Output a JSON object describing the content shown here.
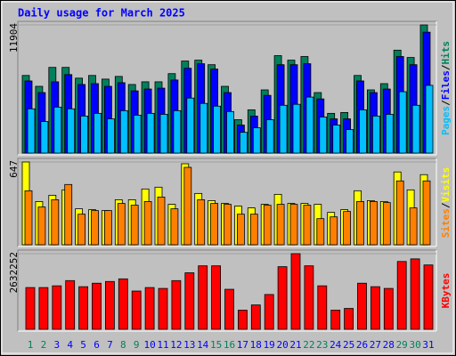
{
  "chart_data": [
    {
      "type": "bar",
      "title": "Daily usage for March 2025",
      "legend_separator": "/",
      "ylim": [
        0,
        11904
      ],
      "yticks": [
        11904
      ],
      "series": [
        {
          "name": "Hits",
          "color": "#00805c",
          "values": [
            7210,
            6200,
            7960,
            7960,
            6960,
            7210,
            6870,
            7120,
            6370,
            6620,
            6620,
            7380,
            8550,
            8630,
            8210,
            6200,
            3100,
            4020,
            5870,
            9050,
            8630,
            8970,
            5620,
            3690,
            3770,
            7210,
            5870,
            6450,
            9560,
            8880,
            11904
          ]
        },
        {
          "name": "Files",
          "color": "#0000ff",
          "values": [
            6700,
            5620,
            6620,
            7290,
            6370,
            6450,
            6200,
            6540,
            5780,
            5950,
            6030,
            6790,
            7880,
            8300,
            7800,
            5620,
            2600,
            3440,
            5360,
            8210,
            8210,
            8300,
            5030,
            3180,
            3180,
            6700,
            5620,
            5950,
            8970,
            8210,
            11230
          ]
        },
        {
          "name": "Pages",
          "color": "#00c0ff",
          "values": [
            4110,
            2930,
            4270,
            4110,
            3440,
            3690,
            3180,
            3940,
            3520,
            3690,
            3600,
            3940,
            5110,
            4610,
            4360,
            3860,
            1930,
            2350,
            3100,
            4440,
            4530,
            5200,
            3350,
            2600,
            2180,
            4020,
            3440,
            3600,
            5700,
            4440,
            6290
          ]
        }
      ]
    },
    {
      "type": "bar",
      "legend_separator": "/",
      "ylim": [
        0,
        647
      ],
      "yticks": [
        647
      ],
      "series": [
        {
          "name": "Visits",
          "color": "#ffff00",
          "values": [
            647,
            338,
            387,
            429,
            281,
            274,
            267,
            352,
            352,
            436,
            450,
            316,
            633,
            401,
            345,
            323,
            302,
            288,
            316,
            394,
            323,
            323,
            316,
            253,
            274,
            422,
            345,
            338,
            569,
            429,
            548
          ]
        },
        {
          "name": "Sites",
          "color": "#ff8000",
          "values": [
            422,
            295,
            352,
            471,
            239,
            267,
            267,
            323,
            309,
            338,
            373,
            281,
            605,
            352,
            323,
            316,
            239,
            239,
            309,
            316,
            316,
            309,
            204,
            218,
            260,
            338,
            338,
            330,
            499,
            288,
            499
          ]
        }
      ]
    },
    {
      "type": "bar",
      "ylim": [
        0,
        2632252
      ],
      "yticks": [
        2632252
      ],
      "categories": [
        "1",
        "2",
        "3",
        "4",
        "5",
        "6",
        "7",
        "8",
        "9",
        "10",
        "11",
        "12",
        "13",
        "14",
        "15",
        "16",
        "17",
        "18",
        "19",
        "20",
        "21",
        "22",
        "23",
        "24",
        "25",
        "26",
        "27",
        "28",
        "29",
        "30",
        "31"
      ],
      "category_colors": [
        "#00805c",
        "#00805c",
        "#0000ff",
        "#0000ff",
        "#0000ff",
        "#0000ff",
        "#0000ff",
        "#00805c",
        "#00805c",
        "#0000ff",
        "#0000ff",
        "#0000ff",
        "#0000ff",
        "#0000ff",
        "#00805c",
        "#00805c",
        "#0000ff",
        "#0000ff",
        "#0000ff",
        "#0000ff",
        "#0000ff",
        "#00805c",
        "#00805c",
        "#0000ff",
        "#0000ff",
        "#0000ff",
        "#0000ff",
        "#0000ff",
        "#00805c",
        "#00805c",
        "#0000ff"
      ],
      "series": [
        {
          "name": "KBytes",
          "color": "#ff0000",
          "values": [
            1452300,
            1452300,
            1512800,
            1694300,
            1482500,
            1603600,
            1664100,
            1754800,
            1331300,
            1452300,
            1422000,
            1694300,
            1966600,
            2208700,
            2208700,
            1391800,
            665600,
            847200,
            1210200,
            2178400,
            2632252,
            2208700,
            1512800,
            665600,
            726100,
            1603600,
            1482500,
            1422000,
            2360000,
            2450700,
            2238900
          ]
        }
      ]
    }
  ]
}
